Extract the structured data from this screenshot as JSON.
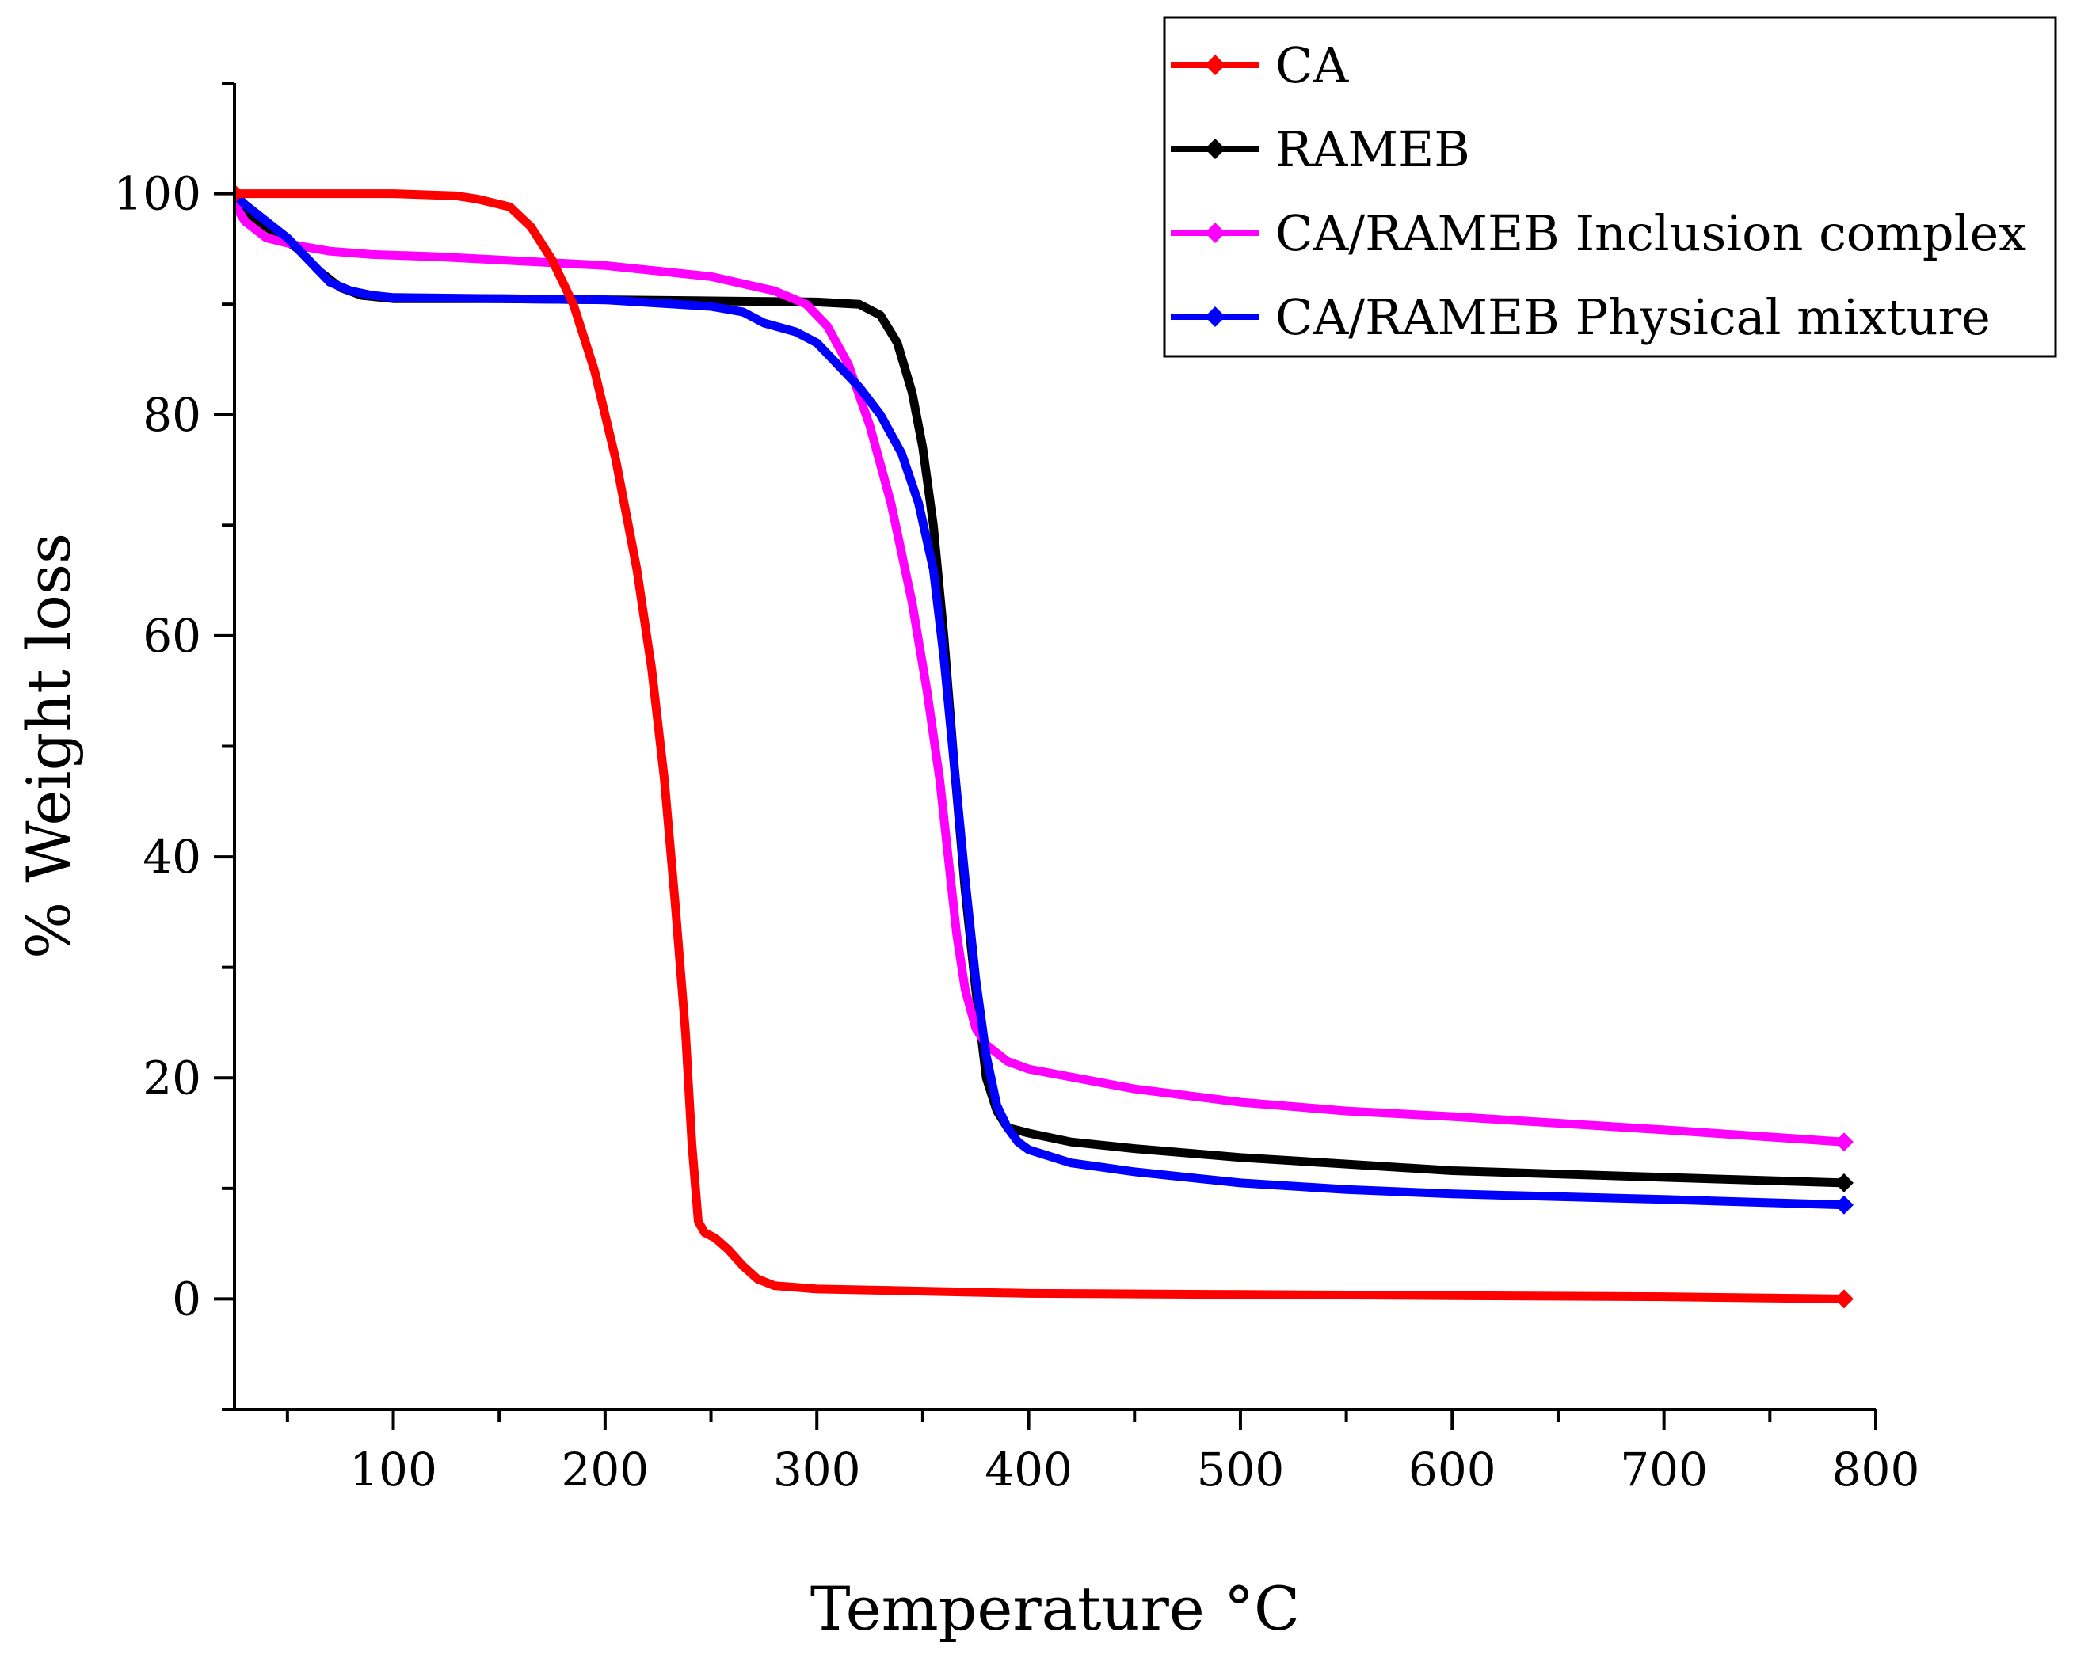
{
  "chart_data": {
    "type": "line",
    "title": "",
    "xlabel": "Temperature °C",
    "ylabel": "% Weight loss",
    "xlim": [
      25,
      800
    ],
    "ylim": [
      -10,
      110
    ],
    "x_ticks": [
      "100",
      "200",
      "300",
      "400",
      "500",
      "600",
      "700",
      "800"
    ],
    "x_tick_values": [
      100,
      200,
      300,
      400,
      500,
      600,
      700,
      800
    ],
    "y_ticks": [
      "0",
      "20",
      "40",
      "60",
      "80",
      "100"
    ],
    "y_tick_values": [
      0,
      20,
      40,
      60,
      80,
      100
    ],
    "grid": false,
    "legend_position": "top-right",
    "series": [
      {
        "name": "CA",
        "color": "#ff0000",
        "x": [
          25,
          60,
          100,
          130,
          140,
          155,
          165,
          175,
          185,
          195,
          205,
          215,
          222,
          228,
          233,
          238,
          241,
          244,
          247,
          252,
          258,
          265,
          272,
          280,
          300,
          350,
          400,
          500,
          600,
          700,
          785
        ],
        "y": [
          100,
          100,
          100,
          99.8,
          99.5,
          98.8,
          97,
          94,
          90,
          84,
          76,
          66,
          57,
          47,
          36,
          24,
          14,
          7,
          6,
          5.5,
          4.5,
          3,
          1.8,
          1.2,
          0.9,
          0.7,
          0.5,
          0.4,
          0.3,
          0.2,
          0
        ]
      },
      {
        "name": "RAMEB",
        "color": "#000000",
        "x": [
          25,
          40,
          55,
          65,
          75,
          85,
          100,
          150,
          200,
          250,
          300,
          320,
          330,
          338,
          345,
          350,
          355,
          360,
          365,
          370,
          375,
          380,
          385,
          390,
          400,
          420,
          450,
          500,
          550,
          600,
          700,
          785
        ],
        "y": [
          99,
          97,
          95,
          93,
          91.5,
          90.8,
          90.5,
          90.5,
          90.4,
          90.3,
          90.2,
          90,
          89,
          86.5,
          82,
          77,
          70,
          60,
          48,
          37,
          28,
          20,
          17,
          15.5,
          15,
          14.2,
          13.6,
          12.8,
          12.2,
          11.6,
          11,
          10.5
        ]
      },
      {
        "name": "CA/RAMEB Inclusion complex",
        "color": "#ff00ff",
        "x": [
          25,
          30,
          40,
          55,
          70,
          90,
          120,
          150,
          200,
          250,
          280,
          295,
          305,
          315,
          325,
          335,
          345,
          352,
          358,
          362,
          366,
          370,
          375,
          380,
          390,
          400,
          450,
          500,
          550,
          600,
          700,
          785
        ],
        "y": [
          99,
          97.5,
          96,
          95.3,
          94.8,
          94.5,
          94.3,
          94,
          93.5,
          92.5,
          91.2,
          90,
          88,
          84.5,
          79,
          72,
          63,
          55,
          47,
          40,
          33,
          28,
          24.5,
          23,
          21.5,
          20.8,
          19,
          17.8,
          17,
          16.5,
          15.3,
          14.2
        ]
      },
      {
        "name": "CA/RAMEB Physical mixture",
        "color": "#0000ff",
        "x": [
          25,
          30,
          40,
          50,
          60,
          70,
          80,
          90,
          100,
          150,
          200,
          250,
          265,
          275,
          290,
          300,
          310,
          320,
          330,
          340,
          348,
          355,
          360,
          365,
          370,
          375,
          380,
          385,
          390,
          395,
          400,
          420,
          450,
          500,
          550,
          600,
          700,
          785
        ],
        "y": [
          100,
          99,
          97.5,
          96,
          94,
          92,
          91.2,
          90.8,
          90.6,
          90.5,
          90.4,
          89.8,
          89.3,
          88.3,
          87.5,
          86.5,
          84.5,
          82.5,
          80,
          76.5,
          72,
          66,
          58,
          48,
          38,
          29,
          22,
          17.5,
          15.5,
          14.2,
          13.5,
          12.3,
          11.5,
          10.5,
          9.9,
          9.5,
          9,
          8.5
        ]
      }
    ]
  }
}
